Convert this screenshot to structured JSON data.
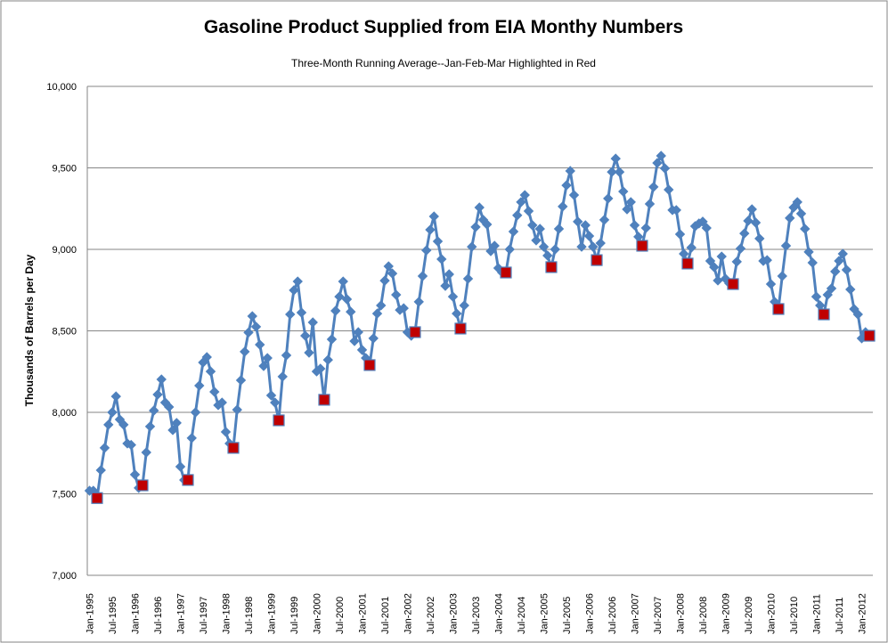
{
  "chart_data": {
    "type": "line",
    "title": "Gasoline Product Supplied from EIA Monthy Numbers",
    "subtitle": "Three-Month Running Average--Jan-Feb-Mar Highlighted in Red",
    "xlabel": "",
    "ylabel": "Thousands of Barrels per Day",
    "ylim": [
      7000,
      10000
    ],
    "y_ticks": [
      "7,000",
      "7,500",
      "8,000",
      "8,500",
      "9,000",
      "9,500",
      "10,000"
    ],
    "y_tick_values": [
      7000,
      7500,
      8000,
      8500,
      9000,
      9500,
      10000
    ],
    "x_start": "Jan-1995",
    "x_end": "Mar-2012",
    "x_ticks": [
      "Jan-1995",
      "Jul-1995",
      "Jan-1996",
      "Jul-1996",
      "Jan-1997",
      "Jul-1997",
      "Jan-1998",
      "Jul-1998",
      "Jan-1999",
      "Jul-1999",
      "Jan-2000",
      "Jul-2000",
      "Jan-2001",
      "Jul-2001",
      "Jan-2002",
      "Jul-2002",
      "Jan-2003",
      "Jul-2003",
      "Jan-2004",
      "Jul-2004",
      "Jan-2005",
      "Jul-2005",
      "Jan-2006",
      "Jul-2006",
      "Jan-2007",
      "Jul-2007",
      "Jan-2008",
      "Jul-2008",
      "Jan-2009",
      "Jul-2009",
      "Jan-2010",
      "Jul-2010",
      "Jan-2011",
      "Jul-2011",
      "Jan-2012"
    ],
    "grid": true,
    "legend": "none",
    "highlight_month": "Mar",
    "colors": {
      "line": "#4F81BD",
      "highlight": "#C00000",
      "grid": "#868686"
    },
    "series": [
      {
        "name": "Gasoline Product Supplied (3-month avg)",
        "values": [
          7519,
          7519,
          7474,
          7645,
          7782,
          7924,
          8000,
          8098,
          7956,
          7924,
          7809,
          7800,
          7618,
          7536,
          7552,
          7754,
          7913,
          8011,
          8109,
          8202,
          8060,
          8033,
          7891,
          7935,
          7667,
          7585,
          7585,
          7842,
          8000,
          8164,
          8306,
          8339,
          8251,
          8126,
          8044,
          8060,
          7880,
          7809,
          7782,
          8016,
          8197,
          8372,
          8490,
          8590,
          8525,
          8415,
          8284,
          8333,
          8104,
          8060,
          7951,
          8219,
          8350,
          8601,
          8749,
          8803,
          8612,
          8470,
          8366,
          8552,
          8251,
          8268,
          8077,
          8322,
          8448,
          8623,
          8710,
          8803,
          8694,
          8617,
          8437,
          8492,
          8383,
          8333,
          8290,
          8454,
          8606,
          8656,
          8808,
          8896,
          8852,
          8721,
          8628,
          8639,
          8492,
          8470,
          8492,
          8678,
          8836,
          8994,
          9120,
          9202,
          9049,
          8940,
          8776,
          8847,
          8710,
          8606,
          8514,
          8656,
          8820,
          9016,
          9137,
          9257,
          9181,
          9153,
          8989,
          9022,
          8885,
          8858,
          8858,
          9000,
          9109,
          9209,
          9290,
          9333,
          9235,
          9148,
          9055,
          9126,
          9016,
          8962,
          8891,
          9000,
          9126,
          9263,
          9393,
          9481,
          9333,
          9170,
          9016,
          9148,
          9082,
          9016,
          8934,
          9038,
          9181,
          9312,
          9475,
          9557,
          9475,
          9355,
          9246,
          9290,
          9148,
          9077,
          9022,
          9131,
          9279,
          9383,
          9530,
          9574,
          9497,
          9366,
          9241,
          9241,
          9093,
          8973,
          8913,
          9011,
          9142,
          9159,
          9170,
          9131,
          8929,
          8891,
          8809,
          8956,
          8820,
          8792,
          8787,
          8924,
          9005,
          9098,
          9175,
          9246,
          9164,
          9066,
          8929,
          8934,
          8787,
          8678,
          8634,
          8836,
          9022,
          9192,
          9257,
          9290,
          9219,
          9126,
          8984,
          8918,
          8710,
          8656,
          8601,
          8721,
          8760,
          8864,
          8929,
          8973,
          8874,
          8754,
          8634,
          8601,
          8454,
          8492,
          8470
        ]
      }
    ]
  }
}
